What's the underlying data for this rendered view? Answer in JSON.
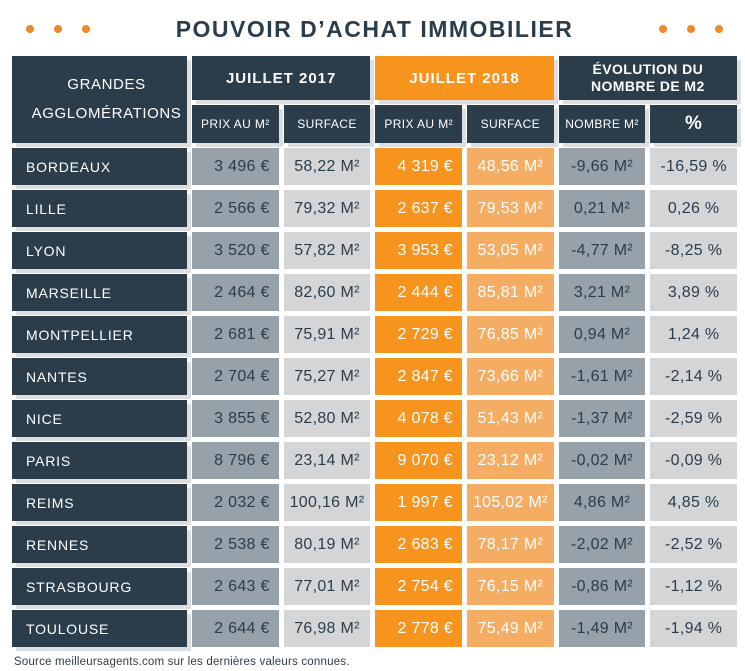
{
  "title": "POUVOIR D’ACHAT IMMOBILIER",
  "source": "Source meilleursagents.com sur les dernières valeurs connues.",
  "colors": {
    "navy": "#2b3d4b",
    "orange": "#f6941e",
    "orange_light": "#f5ad64",
    "gray": "#97a1a9",
    "gray_light": "#d3d5d6",
    "dot_orange": "#ee8a2b",
    "shadow": "#dddedf"
  },
  "chart_data": {
    "type": "table",
    "title": "POUVOIR D’ACHAT IMMOBILIER",
    "row_header": "GRANDES AGGLOMÉRATIONS",
    "column_groups": [
      {
        "label": "JUILLET 2017",
        "span": 2
      },
      {
        "label": "JUILLET 2018",
        "span": 2
      },
      {
        "label": "ÉVOLUTION DU NOMBRE DE M2",
        "span": 2
      }
    ],
    "columns": [
      "PRIX AU M²",
      "SURFACE",
      "PRIX AU M²",
      "SURFACE",
      "NOMBRE M²",
      "%"
    ],
    "rows": [
      {
        "city": "BORDEAUX",
        "values": [
          "3 496 €",
          "58,22 M²",
          "4 319 €",
          "48,56 M²",
          "-9,66 M²",
          "-16,59 %"
        ]
      },
      {
        "city": "LILLE",
        "values": [
          "2 566 €",
          "79,32 M²",
          "2 637 €",
          "79,53 M²",
          "0,21 M²",
          "0,26 %"
        ]
      },
      {
        "city": "LYON",
        "values": [
          "3 520 €",
          "57,82 M²",
          "3 953 €",
          "53,05 M²",
          "-4,77 M²",
          "-8,25 %"
        ]
      },
      {
        "city": "MARSEILLE",
        "values": [
          "2 464 €",
          "82,60 M²",
          "2 444 €",
          "85,81 M²",
          "3,21 M²",
          "3,89 %"
        ]
      },
      {
        "city": "MONTPELLIER",
        "values": [
          "2 681 €",
          "75,91 M²",
          "2 729 €",
          "76,85 M²",
          "0,94 M²",
          "1,24 %"
        ]
      },
      {
        "city": "NANTES",
        "values": [
          "2 704 €",
          "75,27 M²",
          "2 847 €",
          "73,66 M²",
          "-1,61 M²",
          "-2,14 %"
        ]
      },
      {
        "city": "NICE",
        "values": [
          "3 855 €",
          "52,80 M²",
          "4 078 €",
          "51,43 M²",
          "-1,37 M²",
          "-2,59 %"
        ]
      },
      {
        "city": "PARIS",
        "values": [
          "8 796 €",
          "23,14 M²",
          "9 070 €",
          "23,12 M²",
          "-0,02 M²",
          "-0,09 %"
        ]
      },
      {
        "city": "REIMS",
        "values": [
          "2 032 €",
          "100,16 M²",
          "1 997 €",
          "105,02 M²",
          "4,86 M²",
          "4,85 %"
        ]
      },
      {
        "city": "RENNES",
        "values": [
          "2 538 €",
          "80,19 M²",
          "2 683 €",
          "78,17 M²",
          "-2,02 M²",
          "-2,52 %"
        ]
      },
      {
        "city": "STRASBOURG",
        "values": [
          "2 643 €",
          "77,01 M²",
          "2 754 €",
          "76,15 M²",
          "-0,86 M²",
          "-1,12 %"
        ]
      },
      {
        "city": "TOULOUSE",
        "values": [
          "2 644 €",
          "76,98 M²",
          "2 778 €",
          "75,49 M²",
          "-1,49 M²",
          "-1,94 %"
        ]
      }
    ]
  }
}
